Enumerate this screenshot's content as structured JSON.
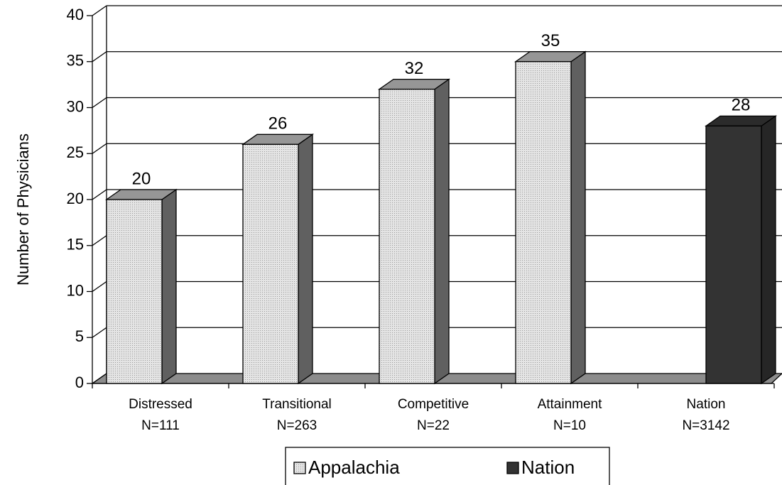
{
  "chart_data": {
    "type": "bar3d",
    "ylabel": "Number of Physicians",
    "categories": [
      [
        "Distressed",
        "N=111"
      ],
      [
        "Transitional",
        "N=263"
      ],
      [
        "Competitive",
        "N=22"
      ],
      [
        "Attainment",
        "N=10"
      ],
      [
        "Nation",
        "N=3142"
      ]
    ],
    "series": [
      {
        "name": "Appalachia",
        "color": "#d6d6d6",
        "values": [
          20,
          26,
          32,
          35,
          null
        ]
      },
      {
        "name": "Nation",
        "color": "#333333",
        "values": [
          null,
          null,
          null,
          null,
          28
        ]
      }
    ],
    "ylim": [
      0,
      40
    ],
    "yticks": [
      0,
      5,
      10,
      15,
      20,
      25,
      30,
      35,
      40
    ],
    "grid": true,
    "legend": "bottom"
  }
}
